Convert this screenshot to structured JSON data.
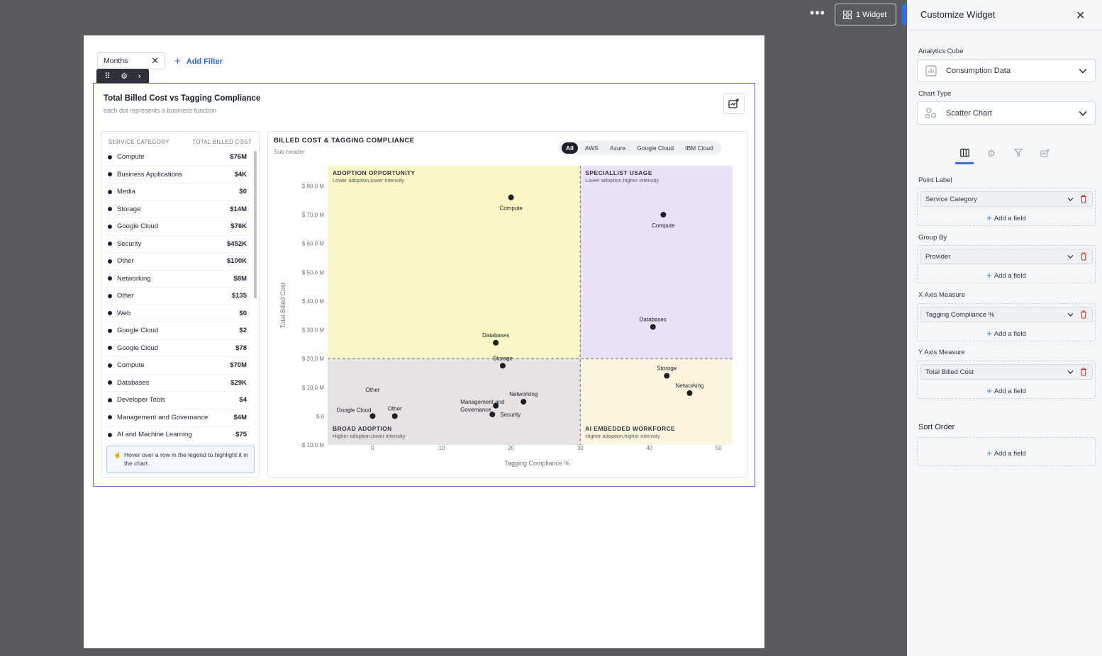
{
  "toolbar": {
    "more_label": "•••",
    "widget_count_label": "1 Widget"
  },
  "canvas": {
    "filter_chip": "Months",
    "add_filter_label": "Add Filter",
    "widget": {
      "title": "Total Billed Cost vs Tagging Compliance",
      "subtitle": "each dot represents a business function"
    }
  },
  "legend": {
    "header_category": "SERVICE CATEGORY",
    "header_cost": "TOTAL BILLED COST",
    "rows": [
      {
        "name": "Compute",
        "value": "$76M"
      },
      {
        "name": "Business Applications",
        "value": "$4K"
      },
      {
        "name": "Media",
        "value": "$0"
      },
      {
        "name": "Storage",
        "value": "$14M"
      },
      {
        "name": "Google Cloud",
        "value": "$76K"
      },
      {
        "name": "Security",
        "value": "$452K"
      },
      {
        "name": "Other",
        "value": "$100K"
      },
      {
        "name": "Networking",
        "value": "$8M"
      },
      {
        "name": "Other",
        "value": "$135"
      },
      {
        "name": "Web",
        "value": "$0"
      },
      {
        "name": "Google Cloud",
        "value": "$2"
      },
      {
        "name": "Google Cloud",
        "value": "$78"
      },
      {
        "name": "Compute",
        "value": "$70M"
      },
      {
        "name": "Databases",
        "value": "$29K"
      },
      {
        "name": "Developer Tools",
        "value": "$4"
      },
      {
        "name": "Management and Governance",
        "value": "$4M"
      },
      {
        "name": "AI and Machine Learning",
        "value": "$75"
      }
    ],
    "hint": "Hover over a row in the legend to highlight it in the chart."
  },
  "chart_header": {
    "title": "BILLED COST & TAGGING COMPLIANCE",
    "subheader": "Sub header",
    "filters": [
      "All",
      "AWS",
      "Azure",
      "Google Cloud",
      "IBM Cloud"
    ],
    "active_filter": "All"
  },
  "chart_data": {
    "type": "scatter",
    "xlabel": "Tagging Compliance %",
    "ylabel": "Total Billed Cost",
    "xlim": [
      -6.5,
      52
    ],
    "ylim": [
      -10,
      87
    ],
    "x_ticks": [
      0,
      10,
      20,
      30,
      40,
      50
    ],
    "y_ticks": [
      -10,
      0,
      10,
      20,
      30,
      40,
      50,
      60,
      70,
      80
    ],
    "y_tick_labels": [
      "-$ 10.0 M",
      "$ 0",
      "$ 10.0 M",
      "$ 20.0 M",
      "$ 30.0 M",
      "$ 40.0 M",
      "$ 50.0 M",
      "$ 60.0 M",
      "$ 70.0 M",
      "$ 80.0 M"
    ],
    "x_threshold": 30,
    "y_threshold": 20,
    "quadrants": [
      {
        "title": "ADOPTION OPPORTUNITY",
        "subtitle": "Lower adoption,lower intensity",
        "color": "#fbf6c4"
      },
      {
        "title": "SPECIALLIST USAGE",
        "subtitle": "Lower adoption,higher intensity",
        "color": "#ebe1f7"
      },
      {
        "title": "BROAD ADOPTION",
        "subtitle": "Higher adoption,lower intensity",
        "color": "#e6e1e3"
      },
      {
        "title": "AI EMBEDDED WORKFORCE",
        "subtitle": "Higher adoption,higher intensity",
        "color": "#fdf4e0"
      }
    ],
    "points": [
      {
        "label": "Compute",
        "x": 20,
        "y": 76,
        "pos": "below"
      },
      {
        "label": "Compute",
        "x": 42,
        "y": 70,
        "pos": "below"
      },
      {
        "label": "Databases",
        "x": 40.5,
        "y": 31,
        "pos": "above"
      },
      {
        "label": "Databases",
        "x": 17.8,
        "y": 25.5,
        "pos": "above"
      },
      {
        "label": "Storage",
        "x": 18.8,
        "y": 17.5,
        "pos": "above"
      },
      {
        "label": "Storage",
        "x": 42.5,
        "y": 14,
        "pos": "above"
      },
      {
        "label": "Networking",
        "x": 45.8,
        "y": 8,
        "pos": "above"
      },
      {
        "label": "Networking",
        "x": 21.8,
        "y": 5,
        "pos": "above"
      },
      {
        "label": "Management and Governance",
        "x": 17.8,
        "y": 3.6,
        "pos": "left2"
      },
      {
        "label": "Security",
        "x": 17.3,
        "y": 0.6,
        "pos": "right"
      },
      {
        "label": "Other",
        "x": 0,
        "y": 6.5,
        "pos": "above-only"
      },
      {
        "label": "Google Cloud",
        "x": 0,
        "y": 0,
        "pos": "left"
      },
      {
        "label": "Other",
        "x": 3.2,
        "y": 0,
        "pos": "above"
      }
    ]
  },
  "sidebar": {
    "title": "Customize Widget",
    "analytics_cube_label": "Analytics Cube",
    "analytics_cube_value": "Consumption Data",
    "chart_type_label": "Chart Type",
    "chart_type_value": "Scatter Chart",
    "point_label": {
      "label": "Point Label",
      "value": "Service Category",
      "add": "Add a field"
    },
    "group_by": {
      "label": "Group By",
      "value": "Provider",
      "add": "Add a field"
    },
    "x_axis": {
      "label": "X Axis Measure",
      "value": "Tagging Compliance %",
      "add": "Add a field"
    },
    "y_axis": {
      "label": "Y Axis Measure",
      "value": "Total Billed Cost",
      "add": "Add a field"
    },
    "sort_order": {
      "label": "Sort Order",
      "add": "Add a field"
    },
    "accent": "#2f6fe0",
    "delete_color": "#d9342b"
  }
}
